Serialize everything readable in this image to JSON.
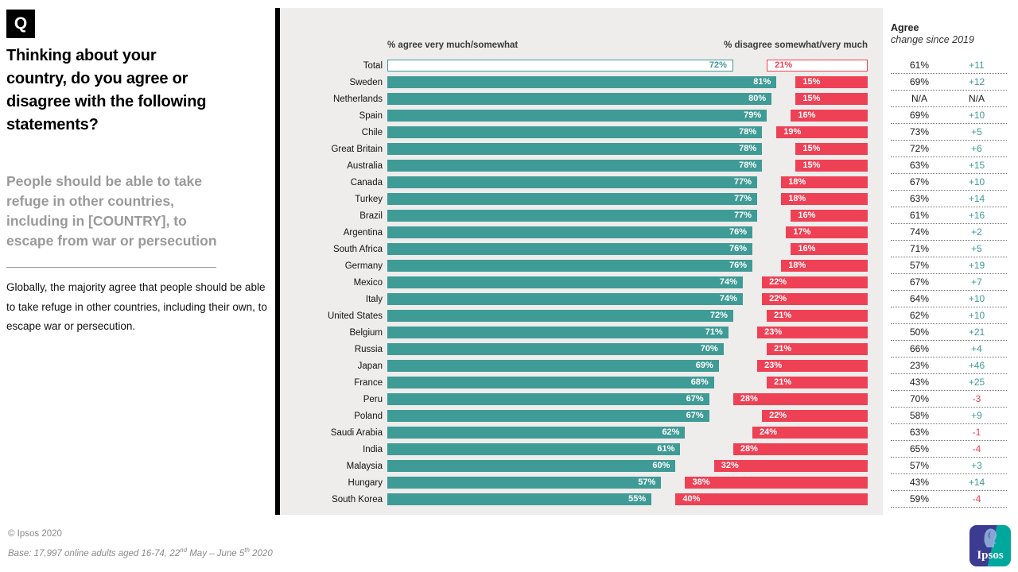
{
  "q_label": "Q",
  "title": "Thinking about your country, do you agree or disagree with the following statements?",
  "subtitle": "People should be able to take refuge in other countries, including in [COUNTRY],  to escape from war or persecution",
  "description": "Globally, the majority agree that people should be able to take refuge in other countries, including their own, to escape war or persecution.",
  "colors": {
    "agree_teal": "#3f9b96",
    "disagree_red": "#ee4155",
    "chart_background": "#eeedec",
    "subtitle_gray": "#9a9a9a"
  },
  "chart_data": {
    "type": "bar",
    "orientation": "horizontal",
    "agree_header": "% agree very much/somewhat",
    "disagree_header": "% disagree somewhat/very much",
    "scale_pct": [
      0,
      100
    ],
    "note": "agree bars anchored left, disagree bars anchored right on a shared 0-100% scale",
    "rows": [
      {
        "label": "Total",
        "agree": 72,
        "disagree": 21,
        "agree_2019": "61%",
        "change": "+11",
        "total": true
      },
      {
        "label": "Sweden",
        "agree": 81,
        "disagree": 15,
        "agree_2019": "69%",
        "change": "+12"
      },
      {
        "label": "Netherlands",
        "agree": 80,
        "disagree": 15,
        "agree_2019": "N/A",
        "change": "N/A"
      },
      {
        "label": "Spain",
        "agree": 79,
        "disagree": 16,
        "agree_2019": "69%",
        "change": "+10"
      },
      {
        "label": "Chile",
        "agree": 78,
        "disagree": 19,
        "agree_2019": "73%",
        "change": "+5"
      },
      {
        "label": "Great Britain",
        "agree": 78,
        "disagree": 15,
        "agree_2019": "72%",
        "change": "+6"
      },
      {
        "label": "Australia",
        "agree": 78,
        "disagree": 15,
        "agree_2019": "63%",
        "change": "+15"
      },
      {
        "label": "Canada",
        "agree": 77,
        "disagree": 18,
        "agree_2019": "67%",
        "change": "+10"
      },
      {
        "label": "Turkey",
        "agree": 77,
        "disagree": 18,
        "agree_2019": "63%",
        "change": "+14"
      },
      {
        "label": "Brazil",
        "agree": 77,
        "disagree": 16,
        "agree_2019": "61%",
        "change": "+16"
      },
      {
        "label": "Argentina",
        "agree": 76,
        "disagree": 17,
        "agree_2019": "74%",
        "change": "+2"
      },
      {
        "label": "South Africa",
        "agree": 76,
        "disagree": 16,
        "agree_2019": "71%",
        "change": "+5"
      },
      {
        "label": "Germany",
        "agree": 76,
        "disagree": 18,
        "agree_2019": "57%",
        "change": "+19"
      },
      {
        "label": "Mexico",
        "agree": 74,
        "disagree": 22,
        "agree_2019": "67%",
        "change": "+7"
      },
      {
        "label": "Italy",
        "agree": 74,
        "disagree": 22,
        "agree_2019": "64%",
        "change": "+10"
      },
      {
        "label": "United States",
        "agree": 72,
        "disagree": 21,
        "agree_2019": "62%",
        "change": "+10"
      },
      {
        "label": "Belgium",
        "agree": 71,
        "disagree": 23,
        "agree_2019": "50%",
        "change": "+21"
      },
      {
        "label": "Russia",
        "agree": 70,
        "disagree": 21,
        "agree_2019": "66%",
        "change": "+4"
      },
      {
        "label": "Japan",
        "agree": 69,
        "disagree": 23,
        "agree_2019": "23%",
        "change": "+46"
      },
      {
        "label": "France",
        "agree": 68,
        "disagree": 21,
        "agree_2019": "43%",
        "change": "+25"
      },
      {
        "label": "Peru",
        "agree": 67,
        "disagree": 28,
        "agree_2019": "70%",
        "change": "-3"
      },
      {
        "label": "Poland",
        "agree": 67,
        "disagree": 22,
        "agree_2019": "58%",
        "change": "+9"
      },
      {
        "label": "Saudi Arabia",
        "agree": 62,
        "disagree": 24,
        "agree_2019": "63%",
        "change": "-1"
      },
      {
        "label": "India",
        "agree": 61,
        "disagree": 28,
        "agree_2019": "65%",
        "change": "-4"
      },
      {
        "label": "Malaysia",
        "agree": 60,
        "disagree": 32,
        "agree_2019": "57%",
        "change": "+3"
      },
      {
        "label": "Hungary",
        "agree": 57,
        "disagree": 38,
        "agree_2019": "43%",
        "change": "+14"
      },
      {
        "label": "South Korea",
        "agree": 55,
        "disagree": 40,
        "agree_2019": "59%",
        "change": "-4"
      }
    ]
  },
  "right_panel": {
    "header": "Agree",
    "subheader": "change since 2019"
  },
  "footer": {
    "copyright": "© Ipsos 2020",
    "base_parts": [
      "Base: 17,997 online adults aged 16-74, 22",
      "nd",
      " May – June 5",
      "th",
      " 2020"
    ],
    "logo_text": "Ipsos"
  }
}
